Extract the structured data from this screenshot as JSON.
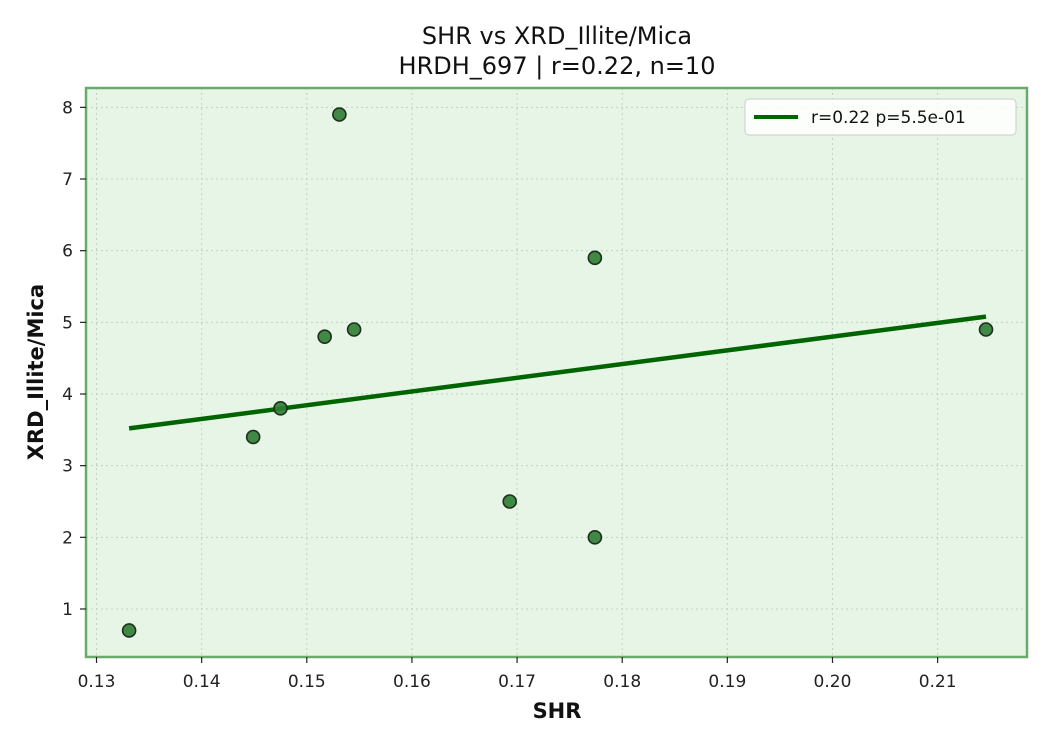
{
  "chart_data": {
    "type": "scatter",
    "title": "SHR vs XRD_Illite/Mica",
    "subtitle": "HRDH_697 | r=0.22, n=10",
    "xlabel": "SHR",
    "ylabel": "XRD_Illite/Mica",
    "xlim": [
      0.129,
      0.2185
    ],
    "ylim": [
      0.33,
      8.27
    ],
    "x_ticks": [
      0.13,
      0.14,
      0.15,
      0.16,
      0.17,
      0.18,
      0.19,
      0.2,
      0.21
    ],
    "x_tick_labels": [
      "0.13",
      "0.14",
      "0.15",
      "0.16",
      "0.17",
      "0.18",
      "0.19",
      "0.20",
      "0.21"
    ],
    "y_ticks": [
      1,
      2,
      3,
      4,
      5,
      6,
      7,
      8
    ],
    "y_tick_labels": [
      "1",
      "2",
      "3",
      "4",
      "5",
      "6",
      "7",
      "8"
    ],
    "grid": true,
    "legend_position": "top-right",
    "series": [
      {
        "type": "scatter",
        "color": "#2e7d32",
        "points": [
          {
            "x": 0.1331,
            "y": 0.7
          },
          {
            "x": 0.1449,
            "y": 3.4
          },
          {
            "x": 0.1475,
            "y": 3.8
          },
          {
            "x": 0.1517,
            "y": 4.8
          },
          {
            "x": 0.1531,
            "y": 7.9
          },
          {
            "x": 0.1545,
            "y": 4.9
          },
          {
            "x": 0.1693,
            "y": 2.5
          },
          {
            "x": 0.1774,
            "y": 5.9
          },
          {
            "x": 0.1774,
            "y": 2.0
          },
          {
            "x": 0.2146,
            "y": 4.9
          }
        ]
      },
      {
        "type": "line",
        "name": "r=0.22  p=5.5e-01",
        "color": "#006400",
        "points": [
          {
            "x": 0.1331,
            "y": 3.52
          },
          {
            "x": 0.2146,
            "y": 5.08
          }
        ]
      }
    ],
    "colors": {
      "plot_background": "#e7f5e7",
      "frame": "#6aaa6a",
      "grid": "#c4d2c4",
      "marker_edge": "#1e2e1e"
    }
  }
}
